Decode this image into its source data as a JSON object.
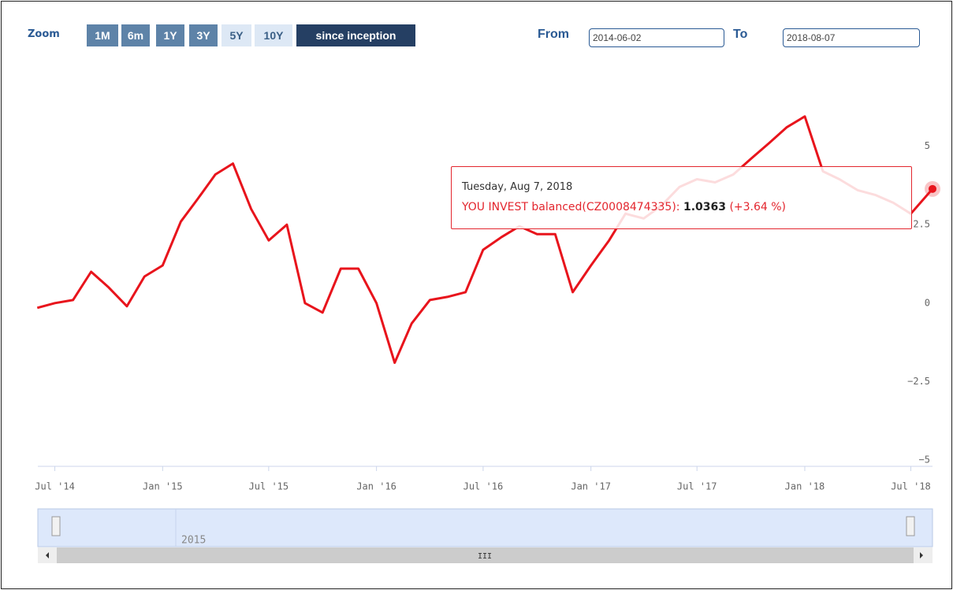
{
  "zoom": {
    "label": "Zoom",
    "buttons": [
      "1M",
      "6m",
      "1Y",
      "3Y",
      "5Y",
      "10Y",
      "since inception"
    ]
  },
  "range": {
    "from_label": "From",
    "from": "2014-06-02",
    "to_label": "To",
    "to": "2018-08-07"
  },
  "tooltip": {
    "date": "Tuesday, Aug 7, 2018",
    "series": "YOU INVEST balanced(CZ0008474335): ",
    "price": "1.0363",
    "change": "(+3.64 %)"
  },
  "navigator": {
    "label": "2015",
    "scroll_label": "III"
  },
  "chart_data": {
    "type": "line",
    "x": [
      "2014-06",
      "2014-07",
      "2014-08",
      "2014-09",
      "2014-10",
      "2014-11",
      "2014-12",
      "2015-01",
      "2015-02",
      "2015-03",
      "2015-04",
      "2015-05",
      "2015-06",
      "2015-07",
      "2015-08",
      "2015-09",
      "2015-10",
      "2015-11",
      "2015-12",
      "2016-01",
      "2016-02",
      "2016-03",
      "2016-04",
      "2016-05",
      "2016-06",
      "2016-07",
      "2016-08",
      "2016-09",
      "2016-10",
      "2016-11",
      "2016-12",
      "2017-01",
      "2017-02",
      "2017-03",
      "2017-04",
      "2017-05",
      "2017-06",
      "2017-07",
      "2017-08",
      "2017-09",
      "2017-10",
      "2017-11",
      "2017-12",
      "2018-01",
      "2018-02",
      "2018-03",
      "2018-04",
      "2018-05",
      "2018-06",
      "2018-07",
      "2018-08-07"
    ],
    "series": [
      {
        "name": "YOU INVEST balanced(CZ0008474335)",
        "color": "#e8141c",
        "values": [
          -0.15,
          0,
          0.1,
          1.0,
          0.5,
          -0.1,
          0.85,
          1.2,
          2.6,
          3.3,
          4.1,
          4.45,
          3.0,
          2.0,
          2.5,
          0,
          -0.3,
          1.1,
          1.1,
          0,
          -1.9,
          -0.65,
          0.1,
          0.2,
          0.35,
          1.7,
          2.1,
          2.45,
          2.2,
          2.2,
          0.35,
          1.2,
          2.0,
          2.85,
          2.7,
          3.1,
          3.7,
          3.95,
          3.85,
          4.1,
          4.6,
          5.1,
          5.6,
          5.95,
          4.2,
          3.95,
          3.6,
          3.45,
          3.2,
          2.85,
          3.64
        ]
      }
    ],
    "xlim": [
      "2014-06-02",
      "2018-08-07"
    ],
    "xticks": [
      {
        "value": "2014-07",
        "label": "Jul '14"
      },
      {
        "value": "2015-01",
        "label": "Jan '15"
      },
      {
        "value": "2015-07",
        "label": "Jul '15"
      },
      {
        "value": "2016-01",
        "label": "Jan '16"
      },
      {
        "value": "2016-07",
        "label": "Jul '16"
      },
      {
        "value": "2017-01",
        "label": "Jan '17"
      },
      {
        "value": "2017-07",
        "label": "Jul '17"
      },
      {
        "value": "2018-01",
        "label": "Jan '18"
      },
      {
        "value": "2018-07",
        "label": "Jul '18"
      }
    ],
    "ylim": [
      -5.2,
      7.2
    ],
    "yticks": [
      {
        "value": -5,
        "label": "−5"
      },
      {
        "value": -2.5,
        "label": "−2.5"
      },
      0,
      2.5,
      5
    ],
    "grid": false
  }
}
